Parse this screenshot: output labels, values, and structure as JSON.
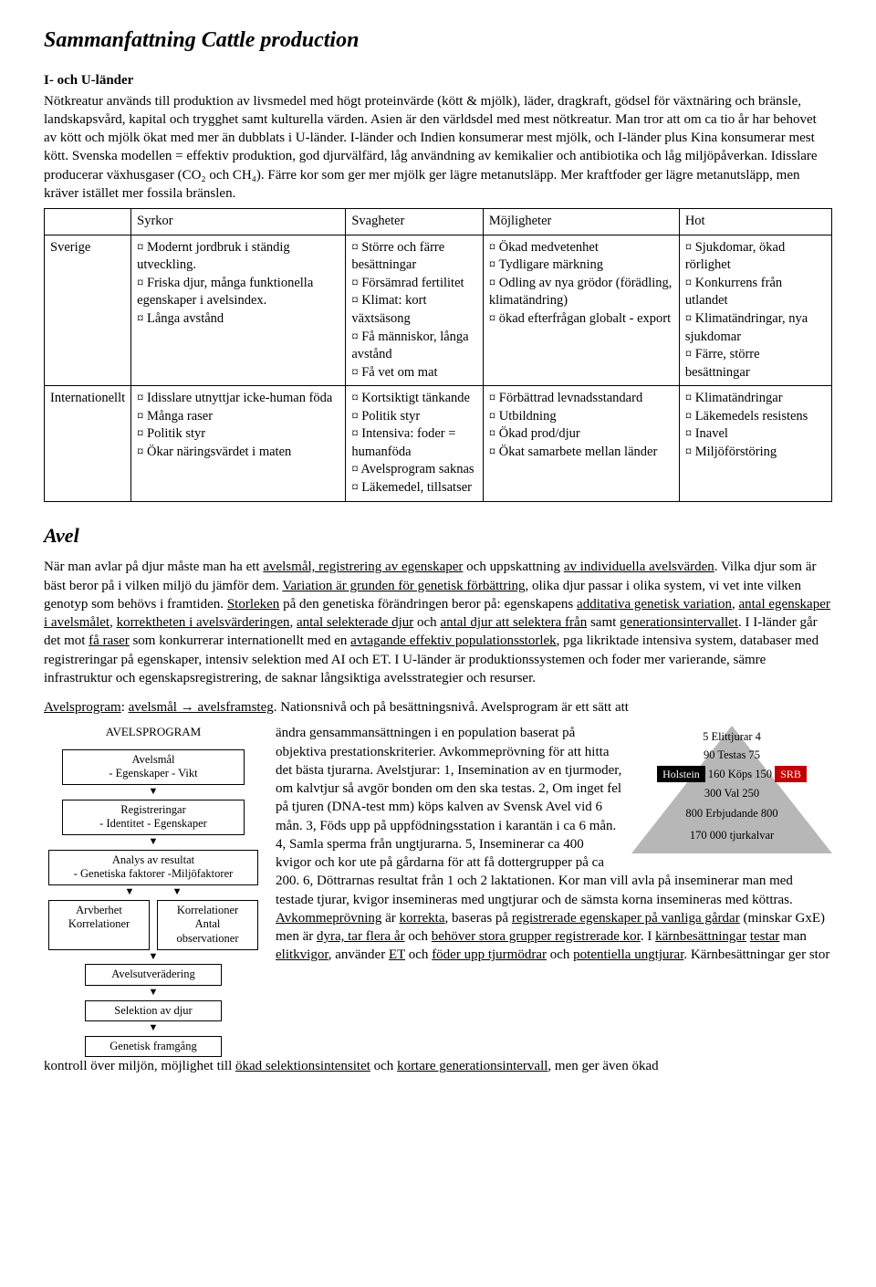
{
  "title": "Sammanfattning Cattle production",
  "section1_heading": "I- och U-länder",
  "section1_body": "Nötkreatur används till produktion av livsmedel med högt proteinvärde (kött & mjölk), läder, dragkraft, gödsel för växtnäring och bränsle, landskapsvård, kapital och trygghet samt kulturella värden. Asien är den världsdel med mest nötkreatur. Man tror att om ca tio år har behovet av kött och mjölk ökat med mer än dubblats i U-länder. I-länder och Indien konsumerar mest mjölk, och I-länder plus Kina konsumerar mest kött. Svenska modellen = effektiv produktion, god djurvälfärd, låg användning av kemikalier och antibiotika och låg miljöpåverkan. Idisslare producerar växhusgaser (CO₂ och CH₄). Färre kor som ger mer mjölk ger lägre metanutsläpp. Mer kraftfoder ger lägre metanutsläpp, men kräver istället mer fossila bränslen.",
  "swot": {
    "headers": [
      "",
      "Syrkor",
      "Svagheter",
      "Möjligheter",
      "Hot"
    ],
    "rows": [
      {
        "label": "Sverige",
        "strength": "¤ Modernt jordbruk i ständig utveckling.\n¤ Friska djur, många funktionella egenskaper i avelsindex.\n¤ Långa avstånd",
        "weak": "¤ Större och färre besättningar\n¤ Försämrad fertilitet\n¤ Klimat: kort växtsäsong\n¤ Få människor, långa avstånd\n¤ Få vet om mat",
        "opp": "¤ Ökad medvetenhet\n¤ Tydligare märkning\n¤ Odling av nya grödor (förädling, klimatändring)\n¤ ökad efterfrågan globalt - export",
        "threat": "¤ Sjukdomar, ökad rörlighet\n¤ Konkurrens från utlandet\n¤ Klimatändringar, nya sjukdomar\n¤ Färre, större besättningar"
      },
      {
        "label": "Internationellt",
        "strength": "¤ Idisslare utnyttjar icke-human föda\n¤ Många raser\n¤ Politik styr\n¤ Ökar näringsvärdet i maten",
        "weak": "¤ Kortsiktigt tänkande\n¤ Politik styr\n¤ Intensiva: foder = humanföda\n¤ Avelsprogram saknas\n¤ Läkemedel, tillsatser",
        "opp": "¤ Förbättrad levnadsstandard\n¤ Utbildning\n¤ Ökad prod/djur\n¤ Ökat samarbete mellan länder",
        "threat": "¤ Klimatändringar\n¤ Läkemedels resistens\n¤ Inavel\n¤ Miljöförstöring"
      }
    ]
  },
  "avel_heading": "Avel",
  "avel_para1_parts": [
    {
      "t": "När man avlar på djur måste man ha ett "
    },
    {
      "t": "avelsmål, registrering av egenskaper",
      "u": true
    },
    {
      "t": " och uppskattning "
    },
    {
      "t": "av individuella avelsvärden",
      "u": true
    },
    {
      "t": ". Vilka djur som är bäst beror på i vilken miljö du jämför dem. "
    },
    {
      "t": "Variation är grunden för genetisk förbättring",
      "u": true
    },
    {
      "t": ", olika djur passar i olika system, vi vet inte vilken genotyp som behövs i framtiden. "
    },
    {
      "t": "Storleken",
      "u": true
    },
    {
      "t": " på den genetiska förändringen beror på: egenskapens "
    },
    {
      "t": "additativa genetisk variation",
      "u": true
    },
    {
      "t": ", "
    },
    {
      "t": "antal egenskaper i avelsmålet",
      "u": true
    },
    {
      "t": ", "
    },
    {
      "t": "korrektheten i avelsvärderingen",
      "u": true
    },
    {
      "t": ", "
    },
    {
      "t": "antal selekterade djur",
      "u": true
    },
    {
      "t": " och "
    },
    {
      "t": "antal djur att selektera från",
      "u": true
    },
    {
      "t": " samt "
    },
    {
      "t": "generationsintervallet",
      "u": true
    },
    {
      "t": ". I I-länder går det mot "
    },
    {
      "t": "få raser",
      "u": true
    },
    {
      "t": " som konkurrerar internationellt med en "
    },
    {
      "t": "avtagande effektiv populationsstorlek",
      "u": true
    },
    {
      "t": ", pga likriktade intensiva system, databaser med registreringar på egenskaper, intensiv selektion med AI och ET. I U-länder är produktionssystemen och foder mer varierande, sämre infrastruktur och egenskapsregistrering, de saknar långsiktiga avelsstrategier och resurser."
    }
  ],
  "avel_para2_prefix_parts": [
    {
      "t": "Avelsprogram",
      "u": true
    },
    {
      "t": ": "
    },
    {
      "t": "avelsmål → avelsframsteg",
      "u": true
    },
    {
      "t": ". Nationsnivå och på besättningsnivå. Avelsprogram är ett sätt att"
    }
  ],
  "flowchart": {
    "title": "AVELSPROGRAM",
    "b1": "Avelsmål\n- Egenskaper   - Vikt",
    "b2": "Registreringar\n- Identitet        - Egenskaper",
    "b3": "Analys av resultat\n- Genetiska faktorer      -Miljöfaktorer",
    "b4a": "Arvberhet\nKorrelationer",
    "b4b": "Korrelationer\nAntal observationer",
    "b5": "Avelsutverädering",
    "b6": "Selektion av djur",
    "b7": "Genetisk framgång"
  },
  "pyramid": {
    "lines": [
      "5 Elittjurar 4",
      "90 Testas 75",
      "160 Köps 150",
      "300   Val   250",
      "800 Erbjudande 800",
      "170 000 tjurkalvar"
    ],
    "holstein": {
      "label": "Holstein",
      "bg": "#000000"
    },
    "srb": {
      "label": "SRB",
      "bg": "#c00000"
    }
  },
  "avel_para2_body_parts": [
    {
      "t": "ändra gensammansättningen i en population baserat på objektiva prestationskriterier. Avkommeprövning för att hitta det bästa tjurarna. Avelstjurar: 1, Insemination av en tjurmoder, om kalvtjur så avgör bonden om den ska testas. 2, Om inget fel på tjuren (DNA-test mm) köps kalven av Svensk Avel vid 6 mån. 3, Föds upp på uppfödningsstation i karantän i ca 6 mån. 4, Samla sperma från ungtjurarna. 5, Inseminerar ca 400 kvigor och kor ute på gårdarna för att få dottergrupper på ca 200. 6, Döttrarnas resultat från 1 och 2 laktationen. Kor man vill avla på inseminerar man med testade tjurar, kvigor insemineras med ungtjurar och de sämsta korna insemineras med köttras. "
    },
    {
      "t": "Avkommeprövning",
      "u": true
    },
    {
      "t": " är "
    },
    {
      "t": "korrekta",
      "u": true
    },
    {
      "t": ", baseras på "
    },
    {
      "t": "registrerade egenskaper på vanliga gårdar",
      "u": true
    },
    {
      "t": " (minskar GxE) men är "
    },
    {
      "t": "dyra, tar flera år",
      "u": true
    },
    {
      "t": " och "
    },
    {
      "t": "behöver stora grupper registrerade kor",
      "u": true
    },
    {
      "t": ". I "
    },
    {
      "t": "kärnbesättningar",
      "u": true
    },
    {
      "t": " "
    },
    {
      "t": "testar",
      "u": true
    },
    {
      "t": " man "
    },
    {
      "t": "elitkvigor",
      "u": true
    },
    {
      "t": ", använder "
    },
    {
      "t": "ET",
      "u": true
    },
    {
      "t": " och "
    },
    {
      "t": "föder upp tjurmödrar",
      "u": true
    },
    {
      "t": " och "
    },
    {
      "t": "potentiella ungtjurar",
      "u": true
    },
    {
      "t": ". Kärnbesättningar ger stor"
    }
  ],
  "avel_tail_parts": [
    {
      "t": "kontroll över miljön, möjlighet till "
    },
    {
      "t": "ökad selektionsintensitet",
      "u": true
    },
    {
      "t": " och "
    },
    {
      "t": "kortare generationsintervall",
      "u": true
    },
    {
      "t": ", men ger även ökad"
    }
  ]
}
